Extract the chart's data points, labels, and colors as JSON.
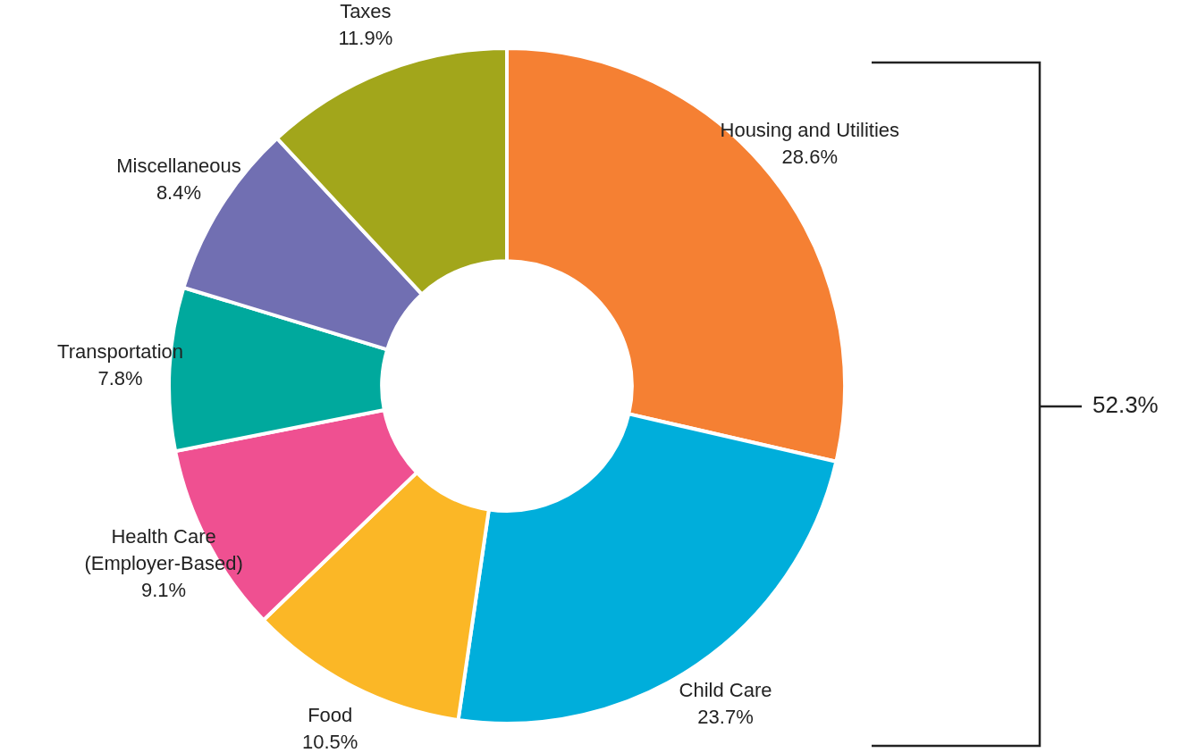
{
  "chart_data": {
    "type": "donut",
    "categories": [
      "Housing and Utilities",
      "Child Care",
      "Food",
      "Health Care (Employer-Based)",
      "Transportation",
      "Miscellaneous",
      "Taxes"
    ],
    "values": [
      28.6,
      23.7,
      10.5,
      9.1,
      7.8,
      8.4,
      11.9
    ],
    "value_labels": [
      "28.6%",
      "23.7%",
      "10.5%",
      "9.1%",
      "7.8%",
      "8.4%",
      "11.9%"
    ],
    "colors": [
      "#f58033",
      "#00aedb",
      "#fbb726",
      "#ef5091",
      "#00a99d",
      "#716fb2",
      "#a2a61b"
    ],
    "annotations": [
      "52.3%"
    ]
  }
}
